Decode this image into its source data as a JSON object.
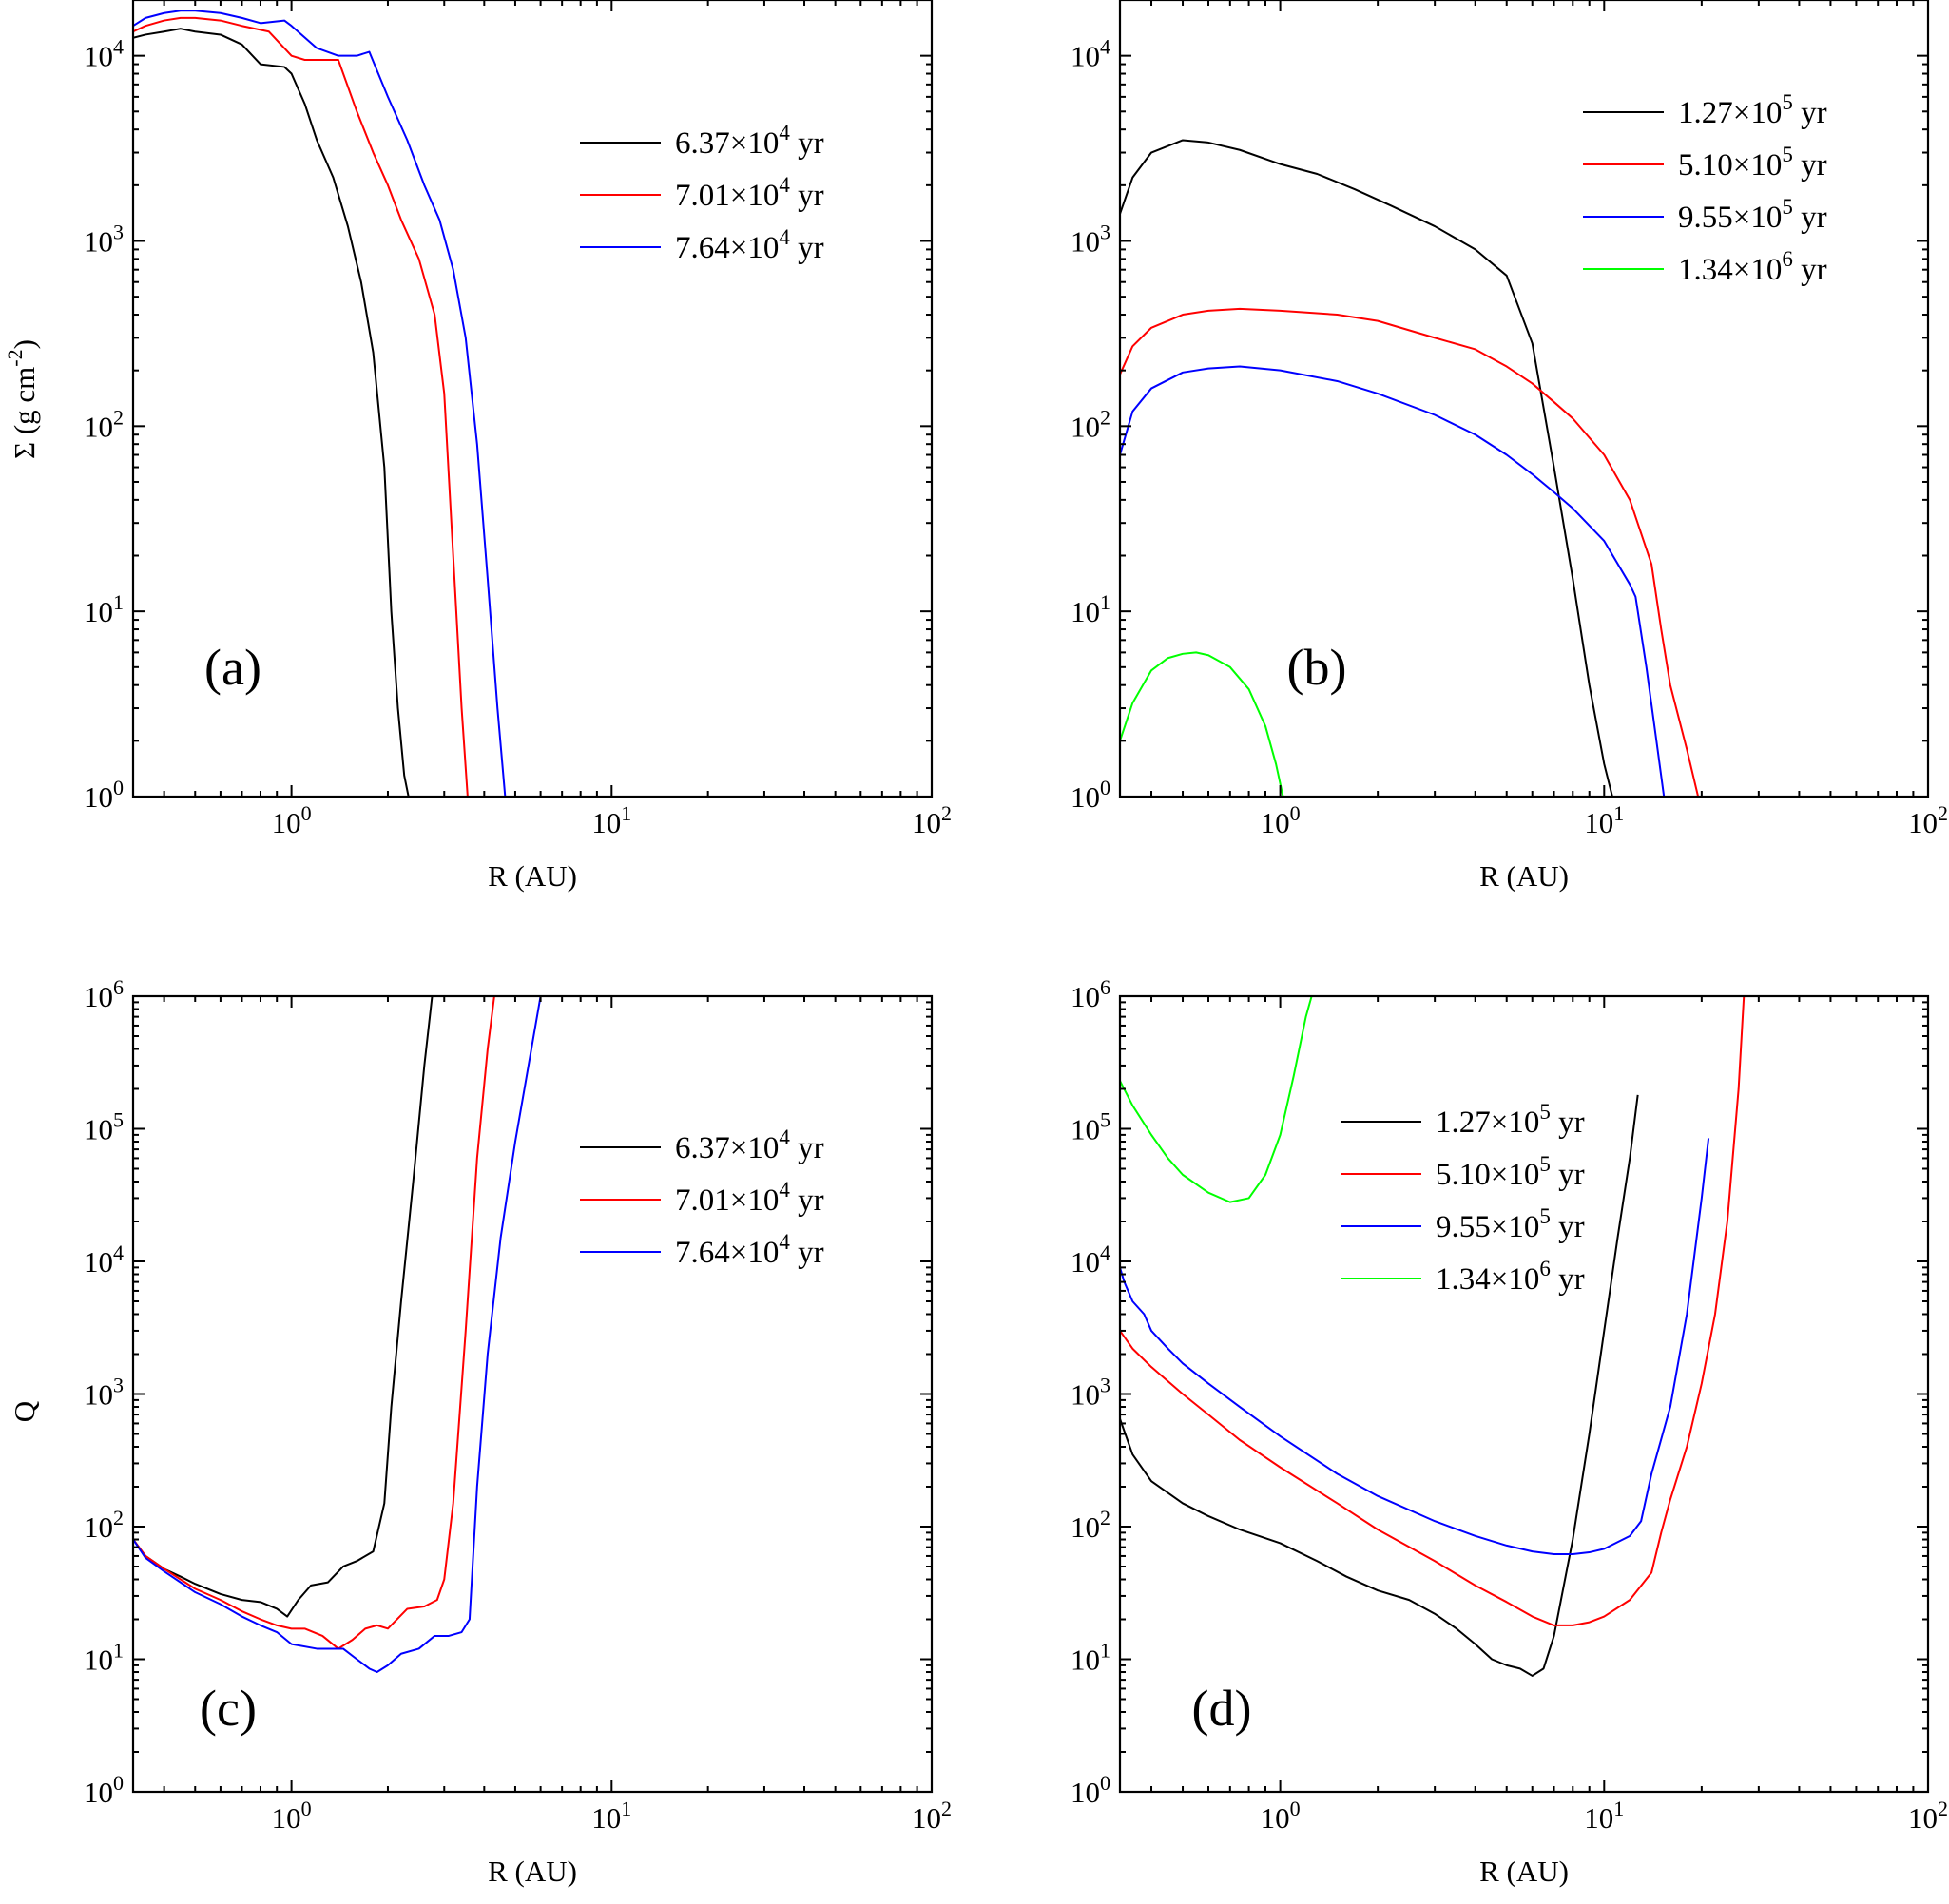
{
  "figure": {
    "chart_data": [
      {
        "panel": "(a)",
        "type": "line",
        "xlabel": "R (AU)",
        "ylabel": "Σ (g cm^-2)",
        "x_scale": "log",
        "y_scale": "log",
        "xlim": [
          0.32,
          100
        ],
        "ylim": [
          1,
          20000
        ],
        "x_ticks": [
          1,
          10,
          100
        ],
        "y_ticks": [
          1,
          10,
          100,
          1000,
          10000
        ],
        "grid": false,
        "legend_position": "top-right",
        "series": [
          {
            "name": "6.37×10^4 yr",
            "color": "#000000",
            "x": [
              0.32,
              0.35,
              0.4,
              0.45,
              0.5,
              0.6,
              0.7,
              0.8,
              0.95,
              1.0,
              1.1,
              1.2,
              1.35,
              1.5,
              1.65,
              1.8,
              1.95,
              2.05,
              2.15,
              2.25,
              2.32
            ],
            "y": [
              12500,
              13000,
              13500,
              14000,
              13500,
              13000,
              11500,
              9000,
              8700,
              8000,
              5500,
              3500,
              2200,
              1200,
              600,
              250,
              60,
              10,
              3,
              1.3,
              1
            ]
          },
          {
            "name": "7.01×10^4 yr",
            "color": "#ff0000",
            "x": [
              0.32,
              0.35,
              0.4,
              0.45,
              0.5,
              0.6,
              0.7,
              0.85,
              1.0,
              1.1,
              1.25,
              1.4,
              1.6,
              1.8,
              2.0,
              2.2,
              2.5,
              2.8,
              3.0,
              3.2,
              3.4,
              3.55
            ],
            "y": [
              13500,
              14500,
              15500,
              16000,
              16000,
              15500,
              14500,
              13500,
              10000,
              9500,
              9500,
              9500,
              5000,
              3000,
              2000,
              1300,
              800,
              400,
              150,
              20,
              3,
              1
            ]
          },
          {
            "name": "7.64×10^4 yr",
            "color": "#0000ff",
            "x": [
              0.32,
              0.35,
              0.4,
              0.45,
              0.5,
              0.6,
              0.7,
              0.8,
              0.95,
              1.0,
              1.2,
              1.4,
              1.6,
              1.75,
              2.0,
              2.3,
              2.6,
              2.9,
              3.2,
              3.5,
              3.8,
              4.1,
              4.4,
              4.65
            ],
            "y": [
              14500,
              16000,
              17000,
              17500,
              17500,
              17000,
              16000,
              15000,
              15500,
              14500,
              11000,
              10000,
              10000,
              10500,
              6000,
              3500,
              2000,
              1300,
              700,
              300,
              80,
              15,
              3,
              1
            ]
          }
        ],
        "legend_entries": [
          {
            "text": "6.37×10",
            "exp": "4",
            "unit": " yr"
          },
          {
            "text": "7.01×10",
            "exp": "4",
            "unit": " yr"
          },
          {
            "text": "7.64×10",
            "exp": "4",
            "unit": " yr"
          }
        ]
      },
      {
        "panel": "(b)",
        "type": "line",
        "xlabel": "R (AU)",
        "ylabel": "",
        "x_scale": "log",
        "y_scale": "log",
        "xlim": [
          0.32,
          100
        ],
        "ylim": [
          1,
          20000
        ],
        "x_ticks": [
          1,
          10,
          100
        ],
        "y_ticks": [
          1,
          10,
          100,
          1000,
          10000
        ],
        "grid": false,
        "legend_position": "top-right",
        "series": [
          {
            "name": "1.27×10^5 yr",
            "color": "#000000",
            "x": [
              0.32,
              0.35,
              0.4,
              0.5,
              0.6,
              0.75,
              1.0,
              1.3,
              1.7,
              2.2,
              3.0,
              4.0,
              5.0,
              6.0,
              7.0,
              8.0,
              9.0,
              10.0,
              10.6
            ],
            "y": [
              1400,
              2200,
              3000,
              3500,
              3400,
              3100,
              2600,
              2300,
              1900,
              1550,
              1200,
              900,
              650,
              280,
              60,
              15,
              4,
              1.5,
              1
            ]
          },
          {
            "name": "5.10×10^5 yr",
            "color": "#ff0000",
            "x": [
              0.32,
              0.35,
              0.4,
              0.5,
              0.6,
              0.75,
              1.0,
              1.5,
              2.0,
              3.0,
              4.0,
              5.0,
              6.0,
              7.0,
              8.0,
              10.0,
              12.0,
              14.0,
              15.0,
              16.0,
              18.0,
              19.5
            ],
            "y": [
              190,
              270,
              340,
              400,
              420,
              430,
              420,
              400,
              370,
              300,
              260,
              210,
              170,
              135,
              110,
              70,
              40,
              18,
              8,
              4,
              1.8,
              1
            ]
          },
          {
            "name": "9.55×10^5 yr",
            "color": "#0000ff",
            "x": [
              0.32,
              0.35,
              0.4,
              0.5,
              0.6,
              0.75,
              1.0,
              1.5,
              2.0,
              3.0,
              4.0,
              5.0,
              6.0,
              7.0,
              8.0,
              10.0,
              12.0,
              12.5,
              13.5,
              14.5,
              15.3
            ],
            "y": [
              70,
              120,
              160,
              195,
              205,
              210,
              200,
              175,
              150,
              115,
              90,
              70,
              55,
              44,
              36,
              24,
              14,
              12,
              5,
              2,
              1
            ]
          },
          {
            "name": "1.34×10^6 yr",
            "color": "#00ff00",
            "x": [
              0.32,
              0.35,
              0.4,
              0.45,
              0.5,
              0.55,
              0.6,
              0.7,
              0.8,
              0.9,
              0.97,
              1.02
            ],
            "y": [
              2,
              3.2,
              4.8,
              5.6,
              5.9,
              6.0,
              5.8,
              5.0,
              3.8,
              2.4,
              1.5,
              1
            ]
          }
        ],
        "legend_entries": [
          {
            "text": "1.27×10",
            "exp": "5",
            "unit": " yr"
          },
          {
            "text": "5.10×10",
            "exp": "5",
            "unit": " yr"
          },
          {
            "text": "9.55×10",
            "exp": "5",
            "unit": " yr"
          },
          {
            "text": "1.34×10",
            "exp": "6",
            "unit": " yr"
          }
        ]
      },
      {
        "panel": "(c)",
        "type": "line",
        "xlabel": "R (AU)",
        "ylabel": "Q",
        "x_scale": "log",
        "y_scale": "log",
        "xlim": [
          0.32,
          100
        ],
        "ylim": [
          1,
          1000000
        ],
        "x_ticks": [
          1,
          10,
          100
        ],
        "y_ticks": [
          1,
          10,
          100,
          1000,
          10000,
          100000,
          1000000
        ],
        "grid": false,
        "legend_position": "top-right",
        "series": [
          {
            "name": "6.37×10^4 yr",
            "color": "#000000",
            "x": [
              0.32,
              0.35,
              0.4,
              0.45,
              0.5,
              0.6,
              0.7,
              0.8,
              0.9,
              0.97,
              1.05,
              1.15,
              1.3,
              1.45,
              1.6,
              1.8,
              1.95,
              2.05,
              2.2,
              2.4,
              2.6,
              2.75
            ],
            "y": [
              80,
              60,
              48,
              42,
              37,
              31,
              28,
              27,
              24,
              21,
              28,
              36,
              38,
              50,
              55,
              65,
              150,
              800,
              5000,
              40000,
              300000,
              1000000
            ]
          },
          {
            "name": "7.01×10^4 yr",
            "color": "#ff0000",
            "x": [
              0.32,
              0.35,
              0.4,
              0.45,
              0.5,
              0.6,
              0.7,
              0.8,
              0.9,
              1.0,
              1.1,
              1.25,
              1.4,
              1.55,
              1.7,
              1.85,
              2.0,
              2.3,
              2.6,
              2.85,
              3.0,
              3.2,
              3.5,
              3.8,
              4.1,
              4.3
            ],
            "y": [
              80,
              60,
              48,
              40,
              34,
              28,
              23,
              20,
              18,
              17,
              17,
              15,
              12,
              14,
              17,
              18,
              17,
              24,
              25,
              28,
              40,
              150,
              3000,
              60000,
              400000,
              1000000
            ]
          },
          {
            "name": "7.64×10^4 yr",
            "color": "#0000ff",
            "x": [
              0.32,
              0.35,
              0.4,
              0.45,
              0.5,
              0.6,
              0.7,
              0.8,
              0.9,
              1.0,
              1.2,
              1.45,
              1.6,
              1.75,
              1.85,
              2.0,
              2.2,
              2.5,
              2.8,
              3.1,
              3.4,
              3.6,
              3.8,
              4.1,
              4.5,
              5.0,
              5.5,
              6.0
            ],
            "y": [
              80,
              58,
              46,
              38,
              32,
              26,
              21,
              18,
              16,
              13,
              12,
              12,
              10,
              8.5,
              8,
              9,
              11,
              12,
              15,
              15,
              16,
              20,
              200,
              2000,
              15000,
              80000,
              300000,
              1000000
            ]
          }
        ],
        "legend_entries": [
          {
            "text": "6.37×10",
            "exp": "4",
            "unit": " yr"
          },
          {
            "text": "7.01×10",
            "exp": "4",
            "unit": " yr"
          },
          {
            "text": "7.64×10",
            "exp": "4",
            "unit": " yr"
          }
        ]
      },
      {
        "panel": "(d)",
        "type": "line",
        "xlabel": "R (AU)",
        "ylabel": "",
        "x_scale": "log",
        "y_scale": "log",
        "xlim": [
          0.32,
          100
        ],
        "ylim": [
          1,
          1000000
        ],
        "x_ticks": [
          1,
          10,
          100
        ],
        "y_ticks": [
          1,
          10,
          100,
          1000,
          10000,
          100000,
          1000000
        ],
        "grid": false,
        "legend_position": "top-right",
        "series": [
          {
            "name": "1.27×10^5 yr",
            "color": "#000000",
            "x": [
              0.32,
              0.35,
              0.4,
              0.5,
              0.6,
              0.75,
              1.0,
              1.3,
              1.6,
              2.0,
              2.5,
              3.0,
              3.5,
              4.0,
              4.5,
              5.0,
              5.5,
              6.0,
              6.5,
              7.0,
              8.0,
              9.0,
              10.0,
              11.0,
              12.0,
              12.7
            ],
            "y": [
              650,
              350,
              220,
              150,
              120,
              95,
              75,
              55,
              42,
              33,
              28,
              22,
              17,
              13,
              10,
              9,
              8.5,
              7.5,
              8.5,
              15,
              80,
              500,
              3000,
              15000,
              60000,
              180000
            ]
          },
          {
            "name": "5.10×10^5 yr",
            "color": "#ff0000",
            "x": [
              0.32,
              0.35,
              0.4,
              0.5,
              0.6,
              0.75,
              1.0,
              1.5,
              2.0,
              3.0,
              4.0,
              5.0,
              6.0,
              7.0,
              8.0,
              9.0,
              10.0,
              12.0,
              14.0,
              15.0,
              16.0,
              18.0,
              20.0,
              22.0,
              24.0,
              26.0,
              27.0
            ],
            "y": [
              3000,
              2200,
              1600,
              1000,
              700,
              450,
              280,
              150,
              95,
              55,
              36,
              27,
              21,
              18,
              18,
              19,
              21,
              28,
              45,
              90,
              160,
              400,
              1200,
              4000,
              20000,
              200000,
              1000000
            ]
          },
          {
            "name": "9.55×10^5 yr",
            "color": "#0000ff",
            "x": [
              0.32,
              0.33,
              0.35,
              0.38,
              0.4,
              0.45,
              0.5,
              0.6,
              0.75,
              1.0,
              1.5,
              2.0,
              3.0,
              4.0,
              5.0,
              6.0,
              7.0,
              8.0,
              9.0,
              10.0,
              12.0,
              13.0,
              14.0,
              16.0,
              18.0,
              20.0,
              21.0
            ],
            "y": [
              9000,
              7000,
              5000,
              4000,
              3000,
              2200,
              1700,
              1200,
              800,
              480,
              250,
              170,
              110,
              85,
              72,
              65,
              62,
              62,
              64,
              68,
              85,
              110,
              250,
              800,
              4000,
              30000,
              85000
            ]
          },
          {
            "name": "1.34×10^6 yr",
            "color": "#00ff00",
            "x": [
              0.32,
              0.35,
              0.4,
              0.45,
              0.5,
              0.6,
              0.7,
              0.8,
              0.9,
              1.0,
              1.1,
              1.2,
              1.25
            ],
            "y": [
              230000,
              150000,
              90000,
              60000,
              45000,
              33000,
              28000,
              30000,
              45000,
              90000,
              250000,
              700000,
              1000000
            ]
          }
        ],
        "legend_entries": [
          {
            "text": "1.27×10",
            "exp": "5",
            "unit": " yr"
          },
          {
            "text": "5.10×10",
            "exp": "5",
            "unit": " yr"
          },
          {
            "text": "9.55×10",
            "exp": "5",
            "unit": " yr"
          },
          {
            "text": "1.34×10",
            "exp": "6",
            "unit": " yr"
          }
        ]
      }
    ]
  }
}
